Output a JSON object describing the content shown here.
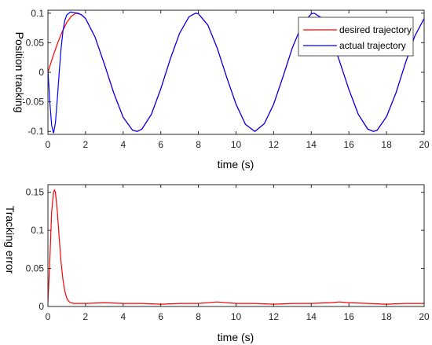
{
  "chart_data": [
    {
      "type": "line",
      "title": "",
      "xlabel": "time (s)",
      "ylabel": "Position tracking",
      "xlim": [
        0,
        20
      ],
      "ylim": [
        -0.105,
        0.105
      ],
      "xticks": [
        "0",
        "2",
        "4",
        "6",
        "8",
        "10",
        "12",
        "14",
        "16",
        "18",
        "20"
      ],
      "yticks": [
        "-0.1",
        "-0.05",
        "0",
        "0.05",
        "0.1"
      ],
      "ytick_values": [
        -0.1,
        -0.05,
        0,
        0.05,
        0.1
      ],
      "grid": false,
      "legend_position": "top-right",
      "series": [
        {
          "name": "desired trajectory",
          "color": "#ff0000",
          "x": [
            0,
            0.25,
            0.5,
            0.75,
            1.0,
            1.25,
            1.5,
            1.75,
            2.0,
            2.5,
            3.0,
            3.5,
            4.0,
            4.5,
            4.75,
            5.0,
            5.5,
            6.0,
            6.5,
            7.0,
            7.5,
            7.85,
            8.0,
            8.5,
            9.0,
            9.5,
            10.0,
            10.5,
            11.0,
            11.5,
            12.0,
            12.5,
            13.0,
            13.5,
            14.0,
            14.15,
            14.5,
            15.0,
            15.5,
            16.0,
            16.5,
            17.0,
            17.3,
            17.5,
            18.0,
            18.5,
            19.0,
            19.5,
            20.0
          ],
          "y": [
            0,
            0.025,
            0.048,
            0.068,
            0.084,
            0.095,
            0.1,
            0.098,
            0.091,
            0.06,
            0.014,
            -0.035,
            -0.076,
            -0.098,
            -0.1,
            -0.096,
            -0.071,
            -0.028,
            0.022,
            0.066,
            0.094,
            0.1,
            0.099,
            0.08,
            0.041,
            -0.008,
            -0.054,
            -0.088,
            -0.1,
            -0.087,
            -0.054,
            -0.007,
            0.042,
            0.08,
            0.099,
            0.1,
            0.093,
            0.065,
            0.019,
            -0.029,
            -0.071,
            -0.096,
            -0.1,
            -0.098,
            -0.075,
            -0.035,
            0.015,
            0.061,
            0.091
          ]
        },
        {
          "name": "actual trajectory",
          "color": "#0000ff",
          "x": [
            0,
            0.1,
            0.2,
            0.3,
            0.4,
            0.5,
            0.6,
            0.7,
            0.8,
            0.9,
            1.0,
            1.2,
            1.4,
            1.6,
            1.8,
            2.0,
            2.5,
            3.0,
            3.5,
            4.0,
            4.5,
            4.75,
            5.0,
            5.5,
            6.0,
            6.5,
            7.0,
            7.5,
            7.85,
            8.0,
            8.5,
            9.0,
            9.5,
            10.0,
            10.5,
            11.0,
            11.5,
            12.0,
            12.5,
            13.0,
            13.5,
            14.0,
            14.15,
            14.5,
            15.0,
            15.5,
            16.0,
            16.5,
            17.0,
            17.3,
            17.5,
            18.0,
            18.5,
            19.0,
            19.5,
            20.0
          ],
          "y": [
            0.005,
            -0.05,
            -0.09,
            -0.103,
            -0.085,
            -0.045,
            0.0,
            0.04,
            0.07,
            0.088,
            0.097,
            0.102,
            0.101,
            0.1,
            0.097,
            0.091,
            0.06,
            0.014,
            -0.035,
            -0.076,
            -0.098,
            -0.1,
            -0.096,
            -0.071,
            -0.028,
            0.022,
            0.066,
            0.094,
            0.1,
            0.099,
            0.08,
            0.041,
            -0.008,
            -0.054,
            -0.088,
            -0.1,
            -0.087,
            -0.054,
            -0.007,
            0.042,
            0.08,
            0.099,
            0.1,
            0.093,
            0.065,
            0.019,
            -0.029,
            -0.071,
            -0.096,
            -0.1,
            -0.098,
            -0.075,
            -0.035,
            0.015,
            0.061,
            0.091
          ]
        }
      ]
    },
    {
      "type": "line",
      "title": "",
      "xlabel": "time (s)",
      "ylabel": "Tracking error",
      "xlim": [
        0,
        20
      ],
      "ylim": [
        0,
        0.16
      ],
      "xticks": [
        "0",
        "2",
        "4",
        "6",
        "8",
        "10",
        "12",
        "14",
        "16",
        "18",
        "20"
      ],
      "yticks": [
        "0",
        "0.05",
        "0.1",
        "0.15"
      ],
      "ytick_values": [
        0,
        0.05,
        0.1,
        0.15
      ],
      "grid": false,
      "series": [
        {
          "color": "#ff0000",
          "x": [
            0,
            0.1,
            0.2,
            0.3,
            0.35,
            0.4,
            0.5,
            0.6,
            0.7,
            0.8,
            0.9,
            1.0,
            1.1,
            1.2,
            1.4,
            1.6,
            2,
            3,
            4,
            5,
            6,
            7,
            8,
            9,
            10,
            11,
            12,
            13,
            14,
            15,
            15.5,
            16,
            17,
            18,
            19,
            20
          ],
          "y": [
            0.005,
            0.06,
            0.125,
            0.15,
            0.153,
            0.15,
            0.125,
            0.09,
            0.058,
            0.035,
            0.02,
            0.011,
            0.007,
            0.005,
            0.004,
            0.004,
            0.004,
            0.005,
            0.004,
            0.004,
            0.003,
            0.004,
            0.004,
            0.006,
            0.004,
            0.004,
            0.003,
            0.004,
            0.004,
            0.005,
            0.006,
            0.005,
            0.004,
            0.003,
            0.004,
            0.004
          ]
        }
      ]
    }
  ]
}
